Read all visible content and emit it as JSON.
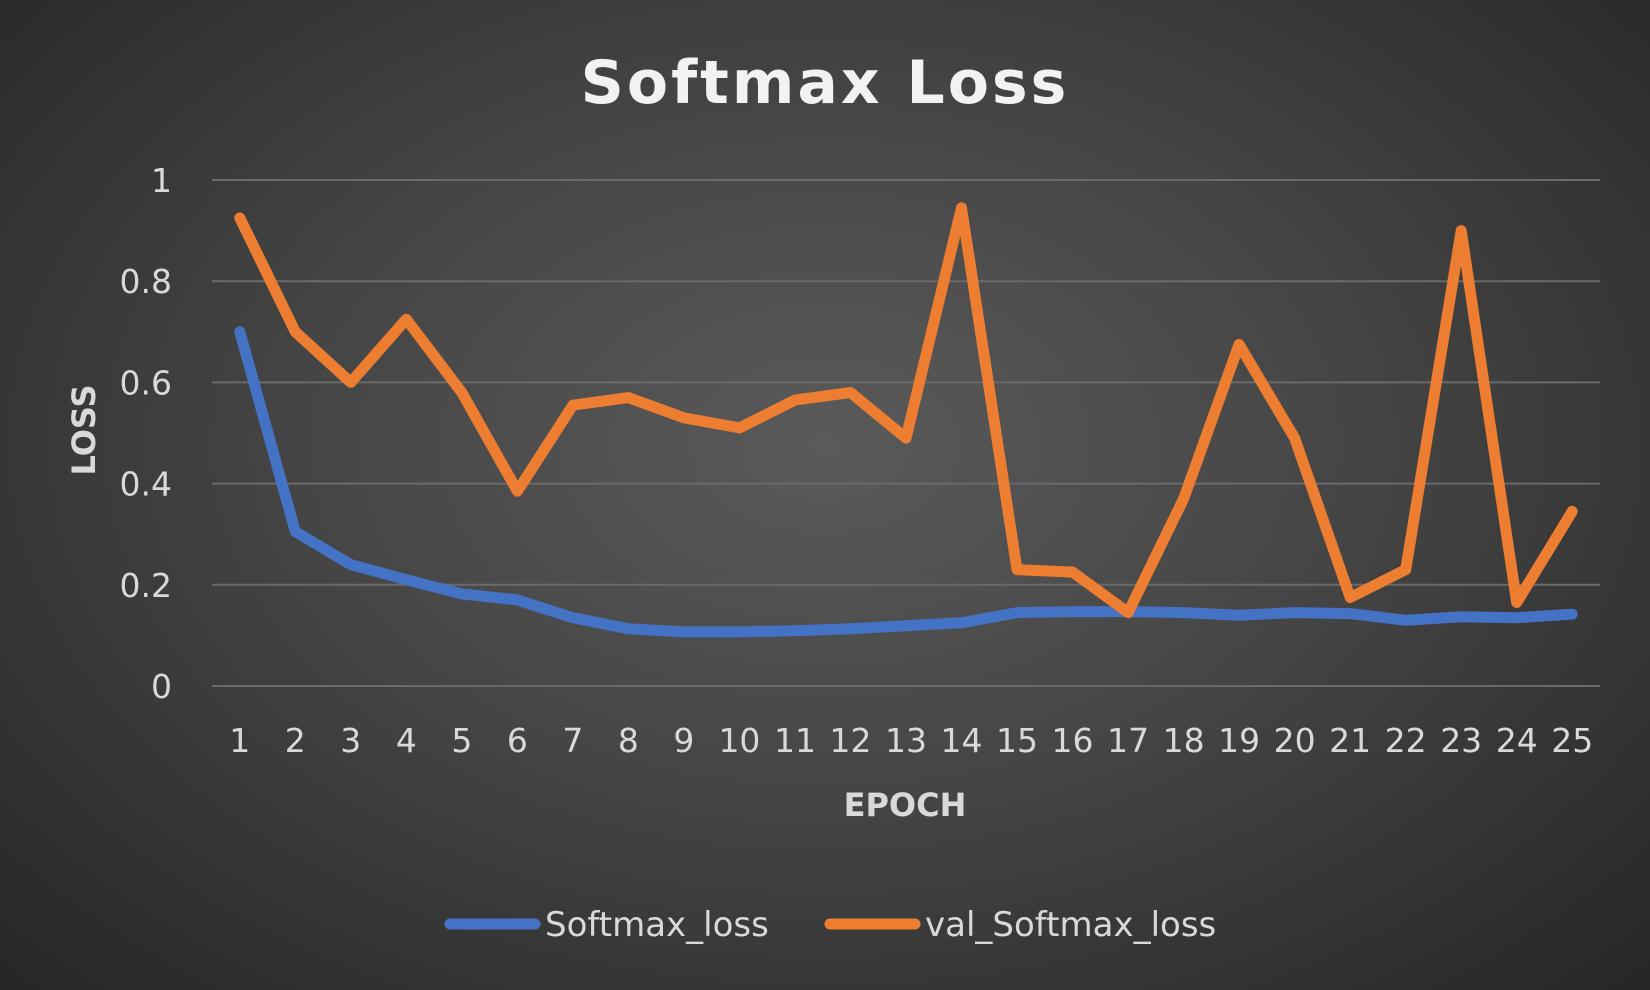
{
  "chart_data": {
    "type": "line",
    "title": "Softmax Loss",
    "xlabel": "EPOCH",
    "ylabel": "LOSS",
    "ylim": [
      0,
      1
    ],
    "yticks": [
      "0",
      "0.2",
      "0.4",
      "0.6",
      "0.8",
      "1"
    ],
    "categories": [
      "1",
      "2",
      "3",
      "4",
      "5",
      "6",
      "7",
      "8",
      "9",
      "10",
      "11",
      "12",
      "13",
      "14",
      "15",
      "16",
      "17",
      "18",
      "19",
      "20",
      "21",
      "22",
      "23",
      "24",
      "25"
    ],
    "grid": true,
    "legend_position": "bottom",
    "series": [
      {
        "name": "Softmax_loss",
        "color": "#4472c4",
        "values": [
          0.7,
          0.305,
          0.24,
          0.21,
          0.182,
          0.17,
          0.135,
          0.113,
          0.107,
          0.107,
          0.109,
          0.113,
          0.119,
          0.125,
          0.145,
          0.147,
          0.147,
          0.145,
          0.14,
          0.145,
          0.143,
          0.13,
          0.137,
          0.135,
          0.142
        ]
      },
      {
        "name": "val_Softmax_loss",
        "color": "#ed7d31",
        "values": [
          0.925,
          0.7,
          0.6,
          0.725,
          0.58,
          0.385,
          0.555,
          0.57,
          0.53,
          0.51,
          0.565,
          0.58,
          0.49,
          0.945,
          0.23,
          0.225,
          0.145,
          0.37,
          0.675,
          0.49,
          0.175,
          0.23,
          0.9,
          0.165,
          0.345
        ]
      }
    ]
  }
}
